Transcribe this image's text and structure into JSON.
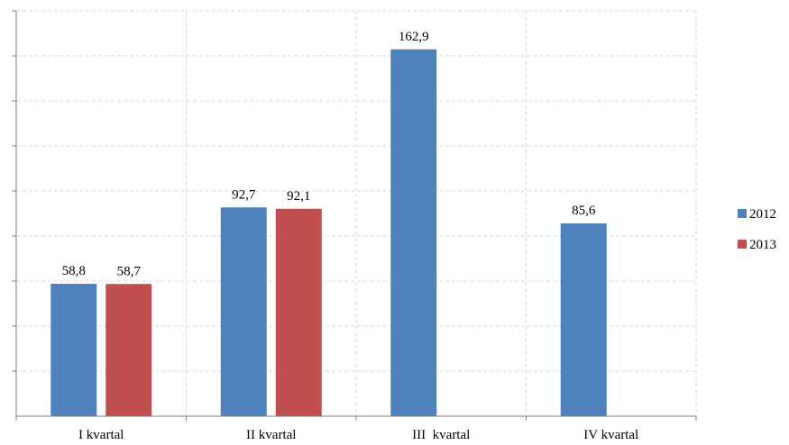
{
  "chart_data": {
    "type": "bar",
    "categories": [
      "I kvartal",
      "II kvartal",
      "III  kvartal",
      "IV kvartal"
    ],
    "series": [
      {
        "name": "2012",
        "values": [
          58.8,
          92.7,
          162.9,
          85.6
        ],
        "labels": [
          "58,8",
          "92,7",
          "162,9",
          "85,6"
        ],
        "color": "#4f81bd"
      },
      {
        "name": "2013",
        "values": [
          58.7,
          92.1,
          null,
          null
        ],
        "labels": [
          "58,7",
          "92,1",
          "",
          ""
        ],
        "color": "#c0504d"
      }
    ],
    "ylim": [
      0,
      180
    ],
    "y_gridline_step": 20,
    "grid": true,
    "grid_style": "dashed",
    "y_tick_labels_shown": false,
    "legend_position": "right",
    "title": "",
    "xlabel": "",
    "ylabel": ""
  }
}
